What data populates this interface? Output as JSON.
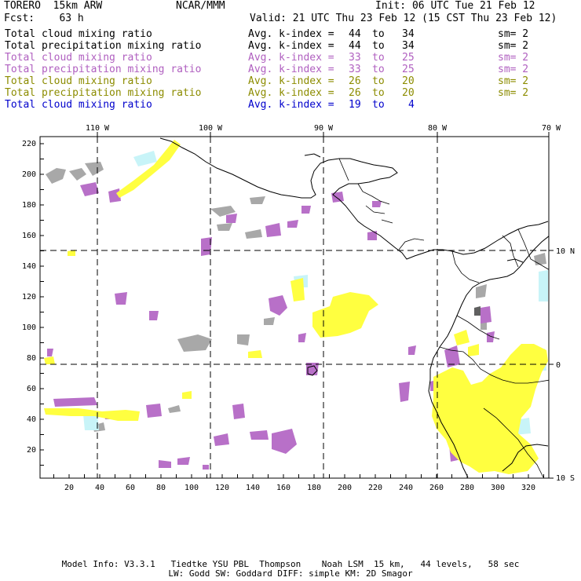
{
  "header": {
    "model": "TORERO  15km ARW",
    "org": "NCAR/MMM",
    "init": "Init: 06 UTC Tue 21 Feb 12",
    "forecast": "Fcst:    63 h",
    "valid": "Valid: 21 UTC Thu 23 Feb 12 (15 CST Thu 23 Feb 12)"
  },
  "legend": [
    {
      "field": "Total cloud mixing ratio",
      "kindex_label": "Avg. k-index =",
      "from": "44",
      "to_word": "to",
      "to": "34",
      "sm": "sm= 2",
      "color": "#000000"
    },
    {
      "field": "Total precipitation mixing ratio",
      "kindex_label": "Avg. k-index =",
      "from": "44",
      "to_word": "to",
      "to": "34",
      "sm": "sm= 2",
      "color": "#000000"
    },
    {
      "field": "Total cloud mixing ratio",
      "kindex_label": "Avg. k-index =",
      "from": "33",
      "to_word": "to",
      "to": "25",
      "sm": "sm= 2",
      "color": "#b060c0"
    },
    {
      "field": "Total precipitation mixing ratio",
      "kindex_label": "Avg. k-index =",
      "from": "33",
      "to_word": "to",
      "to": "25",
      "sm": "sm= 2",
      "color": "#b060c0"
    },
    {
      "field": "Total cloud mixing ratio",
      "kindex_label": "Avg. k-index =",
      "from": "26",
      "to_word": "to",
      "to": "20",
      "sm": "sm= 2",
      "color": "#8c8c00"
    },
    {
      "field": "Total precipitation mixing ratio",
      "kindex_label": "Avg. k-index =",
      "from": "26",
      "to_word": "to",
      "to": "20",
      "sm": "sm= 2",
      "color": "#8c8c00"
    },
    {
      "field": "Total cloud mixing ratio",
      "kindex_label": "Avg. k-index =",
      "from": "19",
      "to_word": "to",
      "to": "4",
      "sm": "",
      "color": "#0000cc"
    }
  ],
  "map": {
    "top_lon_labels": [
      "110 W",
      "100 W",
      "90 W",
      "80 W",
      "70 W"
    ],
    "right_lat_labels": [
      "10 N",
      "0",
      "10 S"
    ],
    "left_grid_labels": [
      "220",
      "200",
      "180",
      "160",
      "140",
      "120",
      "100",
      "80",
      "60",
      "40",
      "20"
    ],
    "bottom_grid_labels": [
      "20",
      "40",
      "60",
      "80",
      "100",
      "120",
      "140",
      "160",
      "180",
      "200",
      "220",
      "240",
      "260",
      "280",
      "300",
      "320"
    ],
    "colors": {
      "grey": "#a8a8a8",
      "purple": "#b870c8",
      "yellow": "#ffff40",
      "cyan": "#c8f4f8",
      "dark": "#606060"
    }
  },
  "footer": {
    "line1": "Model Info: V3.3.1   Tiedtke YSU PBL  Thompson    Noah LSM  15 km,   44 levels,   58 sec",
    "line2": "LW: Godd SW: Goddard DIFF: simple KM: 2D Smagor"
  }
}
